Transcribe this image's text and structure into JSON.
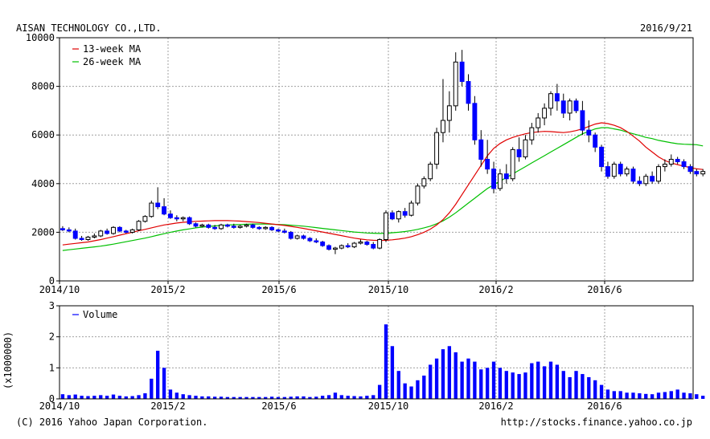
{
  "header": {
    "company": "AISAN TECHNOLOGY CO.,LTD.",
    "date": "2016/9/21"
  },
  "footer": {
    "copyright": "(C) 2016 Yahoo Japan Corporation.",
    "url": "http://stocks.finance.yahoo.co.jp"
  },
  "colors": {
    "candle_up_body": "#ffffff",
    "candle_down_body": "#0000ff",
    "ma13": "#e00000",
    "ma26": "#00c000",
    "volume": "#0000ff",
    "grid": "#a0a0a0"
  },
  "chart_data": [
    {
      "type": "candlestick",
      "title": "AISAN TECHNOLOGY CO.,LTD.",
      "ylim": [
        0,
        10000
      ],
      "yticks": [
        "0",
        "2000",
        "4000",
        "6000",
        "8000",
        "10000"
      ],
      "xticks": [
        "2014/10",
        "2015/2",
        "2015/6",
        "2015/10",
        "2016/2",
        "2016/6"
      ],
      "x_week_index_of_ticks": [
        0,
        17,
        35,
        52,
        69,
        86
      ],
      "grid": true,
      "legend_position": "top-left",
      "legend": [
        "13-week MA",
        "26-week MA"
      ],
      "candles_ohlc_weekly": [
        [
          2150,
          2250,
          2050,
          2100
        ],
        [
          2100,
          2200,
          2000,
          2050
        ],
        [
          2050,
          2150,
          1700,
          1750
        ],
        [
          1750,
          1850,
          1650,
          1700
        ],
        [
          1700,
          1850,
          1650,
          1800
        ],
        [
          1800,
          1950,
          1750,
          1850
        ],
        [
          1850,
          2100,
          1800,
          2050
        ],
        [
          2050,
          2150,
          1900,
          1950
        ],
        [
          1950,
          2250,
          1900,
          2200
        ],
        [
          2200,
          2250,
          2000,
          2050
        ],
        [
          2050,
          2100,
          1950,
          2000
        ],
        [
          2000,
          2150,
          1950,
          2100
        ],
        [
          2100,
          2500,
          2050,
          2450
        ],
        [
          2450,
          2700,
          2400,
          2650
        ],
        [
          2650,
          3300,
          2600,
          3200
        ],
        [
          3200,
          3850,
          2950,
          3050
        ],
        [
          3050,
          3400,
          2700,
          2750
        ],
        [
          2750,
          2900,
          2550,
          2600
        ],
        [
          2600,
          2700,
          2450,
          2550
        ],
        [
          2550,
          2650,
          2450,
          2600
        ],
        [
          2600,
          2650,
          2300,
          2350
        ],
        [
          2350,
          2400,
          2200,
          2250
        ],
        [
          2250,
          2350,
          2200,
          2300
        ],
        [
          2300,
          2350,
          2150,
          2200
        ],
        [
          2200,
          2300,
          2100,
          2150
        ],
        [
          2150,
          2350,
          2100,
          2300
        ],
        [
          2300,
          2350,
          2200,
          2250
        ],
        [
          2250,
          2350,
          2150,
          2200
        ],
        [
          2200,
          2300,
          2150,
          2250
        ],
        [
          2250,
          2350,
          2200,
          2300
        ],
        [
          2300,
          2350,
          2150,
          2200
        ],
        [
          2200,
          2250,
          2100,
          2150
        ],
        [
          2150,
          2250,
          2100,
          2200
        ],
        [
          2200,
          2250,
          2050,
          2100
        ],
        [
          2100,
          2150,
          2000,
          2050
        ],
        [
          2050,
          2150,
          1950,
          2000
        ],
        [
          2000,
          2050,
          1700,
          1750
        ],
        [
          1750,
          1900,
          1700,
          1850
        ],
        [
          1850,
          1900,
          1700,
          1750
        ],
        [
          1750,
          1800,
          1600,
          1650
        ],
        [
          1650,
          1750,
          1550,
          1600
        ],
        [
          1600,
          1650,
          1400,
          1450
        ],
        [
          1450,
          1500,
          1250,
          1300
        ],
        [
          1300,
          1400,
          1100,
          1350
        ],
        [
          1350,
          1500,
          1300,
          1450
        ],
        [
          1450,
          1550,
          1350,
          1400
        ],
        [
          1400,
          1600,
          1350,
          1550
        ],
        [
          1550,
          1700,
          1500,
          1600
        ],
        [
          1600,
          1650,
          1450,
          1500
        ],
        [
          1500,
          1600,
          1300,
          1350
        ],
        [
          1350,
          1750,
          1300,
          1700
        ],
        [
          1700,
          2900,
          1600,
          2800
        ],
        [
          2800,
          2900,
          2500,
          2550
        ],
        [
          2550,
          2900,
          2400,
          2850
        ],
        [
          2850,
          3000,
          2600,
          2700
        ],
        [
          2700,
          3300,
          2650,
          3200
        ],
        [
          3200,
          4000,
          3100,
          3900
        ],
        [
          3900,
          4300,
          3800,
          4200
        ],
        [
          4200,
          4900,
          4100,
          4800
        ],
        [
          4800,
          6300,
          4600,
          6100
        ],
        [
          6100,
          8300,
          5700,
          6600
        ],
        [
          6600,
          7800,
          6100,
          7200
        ],
        [
          7200,
          9400,
          7000,
          9000
        ],
        [
          9000,
          9500,
          8000,
          8200
        ],
        [
          8200,
          8500,
          7000,
          7300
        ],
        [
          7300,
          7600,
          5600,
          5800
        ],
        [
          5800,
          6200,
          4700,
          5000
        ],
        [
          5000,
          5800,
          4400,
          4600
        ],
        [
          4600,
          4900,
          3600,
          3800
        ],
        [
          3800,
          4600,
          3700,
          4400
        ],
        [
          4400,
          4800,
          4000,
          4200
        ],
        [
          4200,
          5500,
          4100,
          5400
        ],
        [
          5400,
          5900,
          4900,
          5100
        ],
        [
          5100,
          6000,
          5000,
          5800
        ],
        [
          5800,
          6500,
          5600,
          6300
        ],
        [
          6300,
          6900,
          6100,
          6700
        ],
        [
          6700,
          7300,
          6400,
          7100
        ],
        [
          7100,
          7800,
          6800,
          7700
        ],
        [
          7700,
          8100,
          7000,
          7400
        ],
        [
          7400,
          7700,
          6700,
          6900
        ],
        [
          6900,
          7500,
          6600,
          7400
        ],
        [
          7400,
          7500,
          6900,
          7000
        ],
        [
          7000,
          7400,
          6000,
          6200
        ],
        [
          6200,
          6600,
          5700,
          6000
        ],
        [
          6000,
          6100,
          5300,
          5500
        ],
        [
          5500,
          5600,
          4500,
          4700
        ],
        [
          4700,
          4900,
          4200,
          4300
        ],
        [
          4300,
          4900,
          4200,
          4800
        ],
        [
          4800,
          4900,
          4300,
          4400
        ],
        [
          4400,
          4700,
          4300,
          4600
        ],
        [
          4600,
          4700,
          4000,
          4100
        ],
        [
          4100,
          4300,
          3900,
          4000
        ],
        [
          4000,
          4400,
          3900,
          4300
        ],
        [
          4300,
          4500,
          4000,
          4100
        ],
        [
          4100,
          4800,
          4000,
          4700
        ],
        [
          4700,
          5000,
          4500,
          4800
        ],
        [
          4800,
          5200,
          4700,
          5000
        ],
        [
          5000,
          5100,
          4800,
          4900
        ],
        [
          4900,
          5000,
          4600,
          4700
        ],
        [
          4700,
          4800,
          4400,
          4500
        ],
        [
          4500,
          4600,
          4300,
          4400
        ],
        [
          4400,
          4600,
          4300,
          4500
        ]
      ],
      "ma13": [
        1480,
        1510,
        1540,
        1570,
        1600,
        1650,
        1700,
        1760,
        1820,
        1880,
        1940,
        2000,
        2060,
        2120,
        2180,
        2240,
        2300,
        2340,
        2380,
        2410,
        2430,
        2450,
        2460,
        2470,
        2480,
        2480,
        2480,
        2470,
        2460,
        2440,
        2420,
        2400,
        2370,
        2340,
        2310,
        2280,
        2240,
        2200,
        2160,
        2110,
        2060,
        2010,
        1960,
        1910,
        1860,
        1810,
        1760,
        1720,
        1690,
        1670,
        1660,
        1670,
        1690,
        1720,
        1760,
        1820,
        1900,
        2000,
        2130,
        2300,
        2520,
        2800,
        3150,
        3550,
        3950,
        4350,
        4750,
        5150,
        5450,
        5650,
        5800,
        5900,
        5980,
        6050,
        6100,
        6130,
        6150,
        6140,
        6120,
        6100,
        6130,
        6180,
        6250,
        6350,
        6450,
        6500,
        6470,
        6400,
        6300,
        6150,
        5950,
        5750,
        5500,
        5300,
        5100,
        4950,
        4850,
        4780,
        4720,
        4660,
        4610,
        4580
      ],
      "ma26": [
        1250,
        1280,
        1310,
        1340,
        1370,
        1400,
        1430,
        1470,
        1510,
        1560,
        1610,
        1660,
        1710,
        1760,
        1820,
        1880,
        1940,
        2000,
        2050,
        2100,
        2140,
        2180,
        2210,
        2240,
        2260,
        2280,
        2300,
        2310,
        2320,
        2330,
        2340,
        2340,
        2340,
        2330,
        2320,
        2310,
        2290,
        2270,
        2250,
        2220,
        2190,
        2160,
        2130,
        2100,
        2070,
        2040,
        2010,
        1990,
        1970,
        1960,
        1950,
        1960,
        1980,
        2000,
        2030,
        2070,
        2120,
        2180,
        2250,
        2350,
        2470,
        2620,
        2800,
        3000,
        3200,
        3400,
        3600,
        3800,
        3950,
        4100,
        4250,
        4400,
        4550,
        4700,
        4850,
        5000,
        5150,
        5300,
        5450,
        5600,
        5750,
        5900,
        6050,
        6150,
        6250,
        6300,
        6300,
        6250,
        6200,
        6120,
        6050,
        5980,
        5900,
        5850,
        5780,
        5730,
        5680,
        5640,
        5620,
        5610,
        5600,
        5550
      ]
    },
    {
      "type": "bar",
      "ylabel": "(x1000000)",
      "ylim": [
        0,
        3
      ],
      "yticks": [
        "0",
        "1",
        "2",
        "3"
      ],
      "xticks": [
        "2014/10",
        "2015/2",
        "2015/6",
        "2015/10",
        "2016/2",
        "2016/6"
      ],
      "legend": [
        "Volume"
      ],
      "legend_position": "top-left",
      "grid": true,
      "weekly_volume": [
        0.15,
        0.12,
        0.14,
        0.1,
        0.09,
        0.1,
        0.12,
        0.1,
        0.14,
        0.1,
        0.08,
        0.09,
        0.12,
        0.18,
        0.65,
        1.55,
        1.0,
        0.3,
        0.2,
        0.15,
        0.12,
        0.1,
        0.08,
        0.08,
        0.07,
        0.07,
        0.06,
        0.06,
        0.06,
        0.06,
        0.06,
        0.06,
        0.06,
        0.07,
        0.06,
        0.06,
        0.07,
        0.08,
        0.08,
        0.06,
        0.07,
        0.1,
        0.12,
        0.2,
        0.12,
        0.1,
        0.09,
        0.08,
        0.1,
        0.12,
        0.45,
        2.4,
        1.7,
        0.9,
        0.5,
        0.4,
        0.6,
        0.75,
        1.1,
        1.3,
        1.6,
        1.7,
        1.5,
        1.2,
        1.3,
        1.2,
        0.95,
        1.0,
        1.2,
        1.0,
        0.9,
        0.85,
        0.8,
        0.85,
        1.15,
        1.2,
        1.05,
        1.2,
        1.1,
        0.9,
        0.7,
        0.9,
        0.8,
        0.7,
        0.6,
        0.45,
        0.3,
        0.25,
        0.25,
        0.2,
        0.2,
        0.18,
        0.16,
        0.15,
        0.2,
        0.22,
        0.25,
        0.3,
        0.2,
        0.18,
        0.15,
        0.1
      ]
    }
  ]
}
